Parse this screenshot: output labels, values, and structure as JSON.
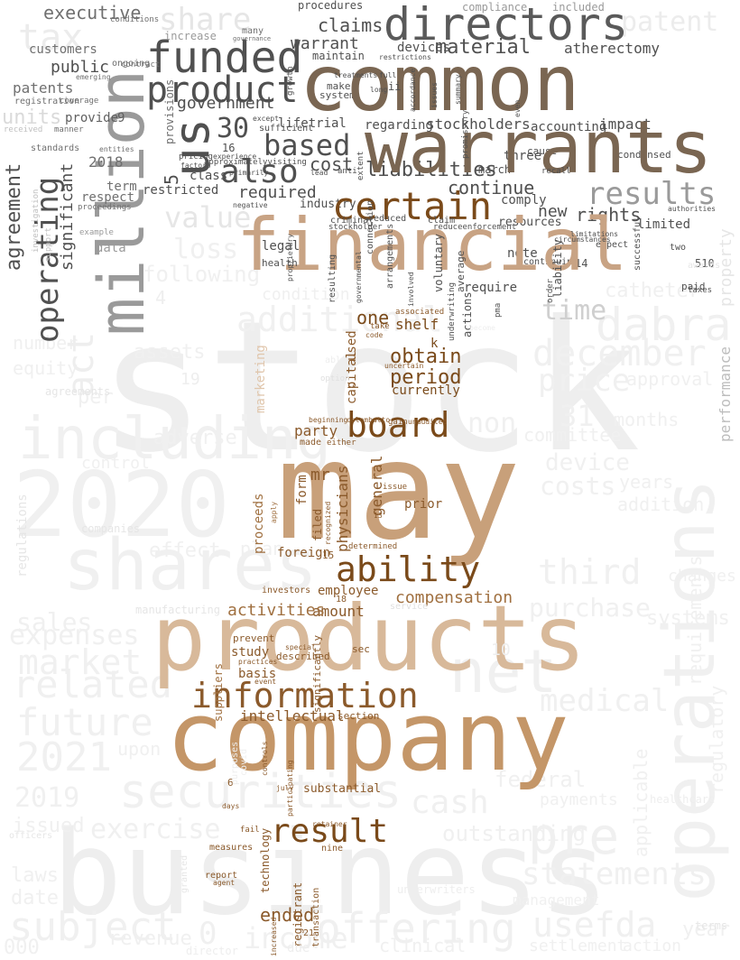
{
  "colors": {
    "background": "#ffffff",
    "faint": "#eeeeee",
    "grey": "#606060",
    "dark_grey": "#505050",
    "taupe": "#7a6652",
    "tan": "#c19a6b",
    "light_tan": "#d8b99a",
    "brown": "#8b5a2b",
    "mid_grey": "#9a9a9a"
  },
  "words": {
    "stock": "stock",
    "may": "may",
    "business": "business",
    "company": "company",
    "products": "products",
    "common": "common",
    "warrants": "warrants",
    "financial": "financial",
    "million": "million",
    "operations": "operations",
    "shares": "shares",
    "including": "including",
    "2020": "2020",
    "directors": "directors",
    "funded": "funded",
    "product": "product",
    "us": "us",
    "certain": "certain",
    "results": "results",
    "information": "information",
    "board": "board",
    "ability": "ability",
    "result": "result",
    "offering": "offering",
    "dabra": "dabra",
    "december": "december",
    "additional": "additional",
    "time": "time",
    "value": "value",
    "tax": "tax",
    "share": "share",
    "executive": "executive",
    "patent": "patent",
    "operating": "operating",
    "agreement": "agreement",
    "significant": "significant",
    "based": "based",
    "also": "also",
    "cost": "cost",
    "claims": "claims",
    "warrant": "warrant",
    "material": "material",
    "devices": "devices",
    "atherectomy": "atherectomy",
    "public": "public",
    "government": "government",
    "30": "30",
    "liabilities": "liabilities",
    "continue": "continue",
    "rights": "rights",
    "new": "new",
    "required": "required",
    "restricted": "restricted",
    "stockholders": "stockholders",
    "lifetrial": "lifetrial",
    "legal": "legal",
    "note": "note",
    "one": "one",
    "shelf": "shelf",
    "obtain": "obtain",
    "period": "period",
    "currently": "currently",
    "party": "party",
    "mr": "mr",
    "capital": "capital",
    "used": "used",
    "physicians": "physicians",
    "general": "general",
    "compensation": "compensation",
    "amount": "amount",
    "activities": "activities",
    "employee": "employee",
    "study": "study",
    "basis": "basis",
    "intellectual": "intellectual",
    "ended": "ended",
    "substantial": "substantial",
    "technology": "technology",
    "form": "form",
    "foreign": "foreign",
    "proceeds": "proceeds",
    "marketing": "marketing",
    "prior": "prior",
    "filed": "filed",
    "net": "net",
    "pre": "pre",
    "cash": "cash",
    "securities": "securities",
    "statements": "statements",
    "medical": "medical",
    "price": "price",
    "third": "third",
    "purchase": "purchase",
    "usefda": "usefda",
    "future": "future",
    "related": "related",
    "market": "market",
    "sales": "sales",
    "expenses": "expenses",
    "subject": "subject",
    "2021": "2021",
    "2019": "2019",
    "issued": "issued",
    "exercise": "exercise",
    "income": "income",
    "revenue": "revenue",
    "date": "date",
    "laws": "laws",
    "federal": "federal",
    "outstanding": "outstanding",
    "management": "management",
    "year": "year",
    "regulatory": "regulatory",
    "performance": "performance",
    "property": "property",
    "catheter": "catheter",
    "loss": "loss",
    "following": "following",
    "condition": "condition",
    "non": "non",
    "31": "31",
    "months": "months",
    "device": "device",
    "costs": "costs",
    "addition": "addition",
    "approval": "approval",
    "act": "act",
    "units": "units",
    "patents": "patents",
    "customers": "customers",
    "2018": "2018",
    "term": "term",
    "respect": "respect",
    "data": "data",
    "provide": "provide",
    "9": "9",
    "5": "5",
    "16": "16",
    "class": "class",
    "industry": "industry",
    "comply": "comply",
    "limited": "limited",
    "resources": "resources",
    "14": "14",
    "510": "510",
    "paid": "paid",
    "expect": "expect",
    "two": "two",
    "condensed": "condensed",
    "three": "three",
    "march": "march",
    "cause": "cause",
    "impact": "impact",
    "accounting": "accounting",
    "regarding": "regarding",
    "may_small": "maintain",
    "system": "system",
    "make": "make",
    "procedures": "procedures",
    "compliance": "compliance",
    "increase": "increase",
    "many": "many",
    "ongoing": "ongoing",
    "contract": "contract",
    "manner": "manner",
    "standards": "standards",
    "provisions": "provisions",
    "require": "require",
    "voluntary": "voluntary",
    "average": "average",
    "k": "k",
    "sec": "sec",
    "section": "section",
    "investors": "investors",
    "prevent": "prevent",
    "described": "described",
    "significantly": "significantly",
    "registrant": "registrant",
    "nine": "nine",
    "report": "report",
    "measures": "measures",
    "covid": "covid",
    "purposes": "purposes",
    "6": "6",
    "15": "15",
    "18": "18",
    "21": "21",
    "10": "10",
    "suppliers": "suppliers",
    "health": "health",
    "criminal": "criminal",
    "reduced": "reduced",
    "claim": "claim",
    "reduceenforcement": "reduceenforcement",
    "arrangements": "arrangements",
    "lead": "lead",
    "anti": "anti",
    "extent": "extent",
    "sufficient": "sufficient",
    "pricing": "pricing",
    "experience": "experience",
    "approximately": "approximatelyvisiting",
    "factors": "factors",
    "primarily": "primarily",
    "negative": "negative",
    "connection": "connection",
    "resulting": "resulting",
    "involved": "involved",
    "continuing": "continuing",
    "order": "order",
    "liability": "liability",
    "pma": "pma",
    "actions": "actions",
    "underwriting": "underwriting",
    "uncertain": "uncertain",
    "associated": "associated",
    "take": "take",
    "code": "code",
    "committee": "committee",
    "adverse": "adverse",
    "control": "control",
    "effect": "effect",
    "plan": "plan",
    "service": "service",
    "gain": "gain",
    "unaudited": "unaudited",
    "beginning": "beginning",
    "colombatto": "colombatto",
    "issue": "issue",
    "made": "made",
    "either": "either",
    "determined": "determined",
    "number": "number",
    "equity": "equity",
    "per": "per",
    "assets": "assets",
    "requirements": "requirements",
    "systems": "systems",
    "changes": "changes",
    "payments": "payments",
    "applicable": "applicable",
    "healthcare": "healthcare",
    "years": "years",
    "agreements": "agreements",
    "emerging": "emerging",
    "registration": "registration",
    "coverage": "coverage",
    "received": "received",
    "entities": "entities",
    "growth": "growth",
    "treatments": "treatments",
    "full": "full",
    "long": "long",
    "ii": "ii",
    "accordance": "accordance",
    "issues": "issues",
    "summary": "summary",
    "promissory": "promissory",
    "recall": "recall",
    "limitations": "limitations",
    "circumstances": "circumstances",
    "successful": "successful",
    "authorities": "authorities",
    "included": "included",
    "conditions": "conditions",
    "governance": "governance",
    "restrictions": "restrictions",
    "audits": "audits",
    "except": "except",
    "example": "example",
    "investigation": "investigation",
    "support": "support",
    "proceedings": "proceedings",
    "granted": "granted",
    "agent": "agent",
    "transaction": "transaction",
    "retainer": "retainer",
    "fail": "fail",
    "days": "days",
    "july": "july",
    "participating": "participating",
    "controls": "controls",
    "increased": "increased",
    "special": "special",
    "event": "event",
    "practices": "practices",
    "apply": "apply",
    "recognized": "recognized",
    "13": "13",
    "17": "17",
    "able": "able",
    "option": "option",
    "become": "become",
    "even": "even",
    "awards": "awards",
    "taxes": "taxes",
    "0": "0",
    "000": "000",
    "upon": "upon",
    "underwriters": "underwriters",
    "directors_small": "director",
    "clinical": "clinical",
    "due": "due",
    "settlement": "settlement",
    "action": "action",
    "terms": "terms",
    "officers": "officers",
    "manufacturing": "manufacturing",
    "companies": "companies",
    "regulations": "regulations",
    "stockholder": "stockholder",
    "proprietary": "proprietary",
    "governmental": "governmental",
    "18b": "18",
    "19": "19",
    "4": "4"
  }
}
